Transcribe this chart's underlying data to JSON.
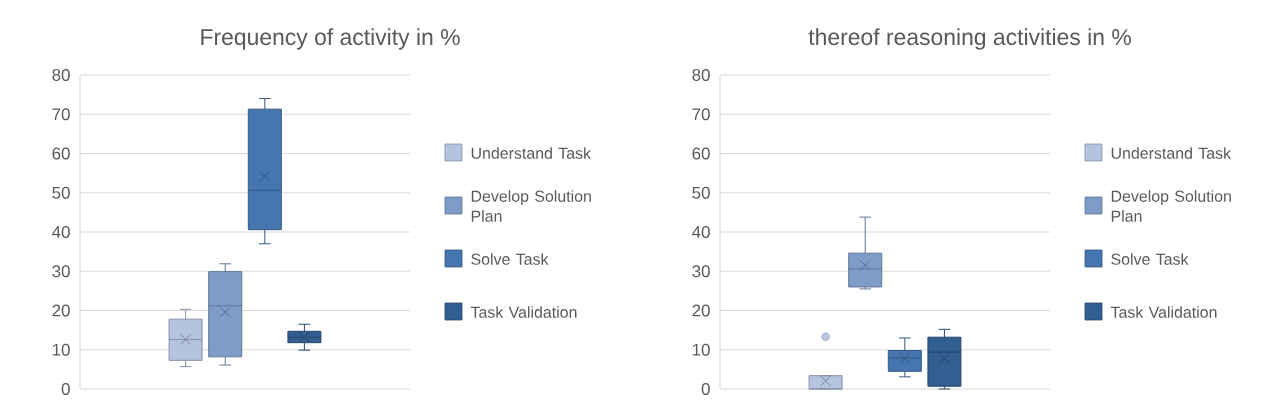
{
  "chart_data": [
    {
      "type": "box",
      "title": "Frequency of activity in %",
      "categories": [
        null
      ],
      "ylim": [
        0,
        80
      ],
      "yticks": [
        0,
        10,
        20,
        30,
        40,
        50,
        60,
        70,
        80
      ],
      "grid": "y",
      "legend": "right",
      "tick_labels": "y",
      "series": [
        {
          "name": "Understand Task",
          "color": "#b4c3df",
          "boxes": [
            {
              "low": 5.7,
              "q1": 7.3,
              "median": 12.6,
              "q3": 17.8,
              "high": 20.3,
              "mean": 12.6
            }
          ]
        },
        {
          "name": "Develop Solution Plan",
          "color": "#7f9cc9",
          "boxes": [
            {
              "low": 6.1,
              "q1": 8.2,
              "median": 21.2,
              "q3": 29.9,
              "high": 31.9,
              "mean": 19.6
            }
          ]
        },
        {
          "name": "Solve Task",
          "color": "#4676b0",
          "boxes": [
            {
              "low": 37.0,
              "q1": 40.6,
              "median": 50.6,
              "q3": 71.3,
              "high": 74.0,
              "mean": 54.2
            }
          ]
        },
        {
          "name": "Task Validation",
          "color": "#335e91",
          "boxes": [
            {
              "low": 9.9,
              "q1": 11.8,
              "median": 13.2,
              "q3": 14.7,
              "high": 16.5,
              "mean": 13.2
            }
          ]
        }
      ]
    },
    {
      "type": "box",
      "title": "thereof reasoning activities in %",
      "categories": [
        null
      ],
      "ylim": [
        0,
        80
      ],
      "yticks": [
        0,
        10,
        20,
        30,
        40,
        50,
        60,
        70,
        80
      ],
      "grid": "y",
      "legend": "right",
      "tick_labels": "y",
      "series": [
        {
          "name": "Understand Task",
          "color": "#b4c3df",
          "boxes": [
            {
              "low": 0,
              "q1": 0,
              "median": 0,
              "q3": 3.4,
              "high": 3.4,
              "mean": 2.1,
              "outliers": [
                13.3
              ]
            }
          ]
        },
        {
          "name": "Develop Solution Plan",
          "color": "#7f9cc9",
          "boxes": [
            {
              "low": 25.5,
              "q1": 26.0,
              "median": 30.6,
              "q3": 34.6,
              "high": 43.8,
              "mean": 31.5
            }
          ]
        },
        {
          "name": "Solve Task",
          "color": "#4676b0",
          "boxes": [
            {
              "low": 3.1,
              "q1": 4.5,
              "median": 7.9,
              "q3": 9.8,
              "high": 13.0,
              "mean": 7.8
            }
          ]
        },
        {
          "name": "Task Validation",
          "color": "#335e91",
          "boxes": [
            {
              "low": 0,
              "q1": 0.7,
              "median": 9.4,
              "q3": 13.2,
              "high": 15.2,
              "mean": 7.8
            }
          ]
        }
      ]
    }
  ]
}
